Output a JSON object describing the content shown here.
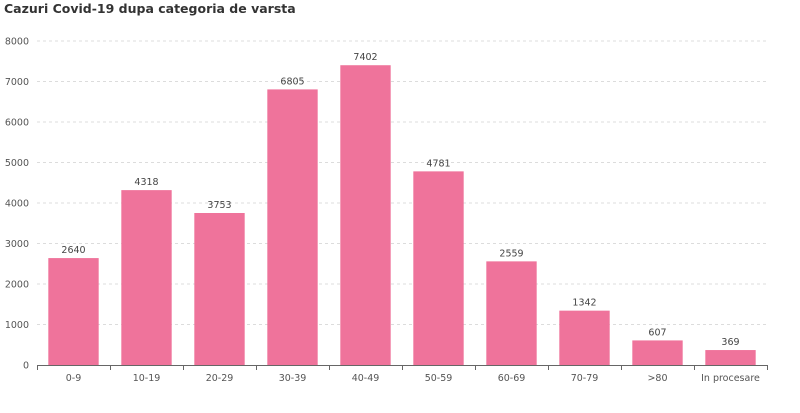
{
  "chart_data": {
    "type": "bar",
    "title": "Cazuri Covid-19 dupa categoria de varsta",
    "xlabel": "",
    "ylabel": "",
    "categories": [
      "0-9",
      "10-19",
      "20-29",
      "30-39",
      "40-49",
      "50-59",
      "60-69",
      "70-79",
      ">80",
      "In procesare"
    ],
    "values": [
      2640,
      4318,
      3753,
      6805,
      7402,
      4781,
      2559,
      1342,
      607,
      369
    ],
    "ylim": [
      0,
      8000
    ],
    "yticks": [
      0,
      1000,
      2000,
      3000,
      4000,
      5000,
      6000,
      7000,
      8000
    ],
    "grid": true,
    "bar_color": "#ef739b",
    "legend": "none"
  }
}
